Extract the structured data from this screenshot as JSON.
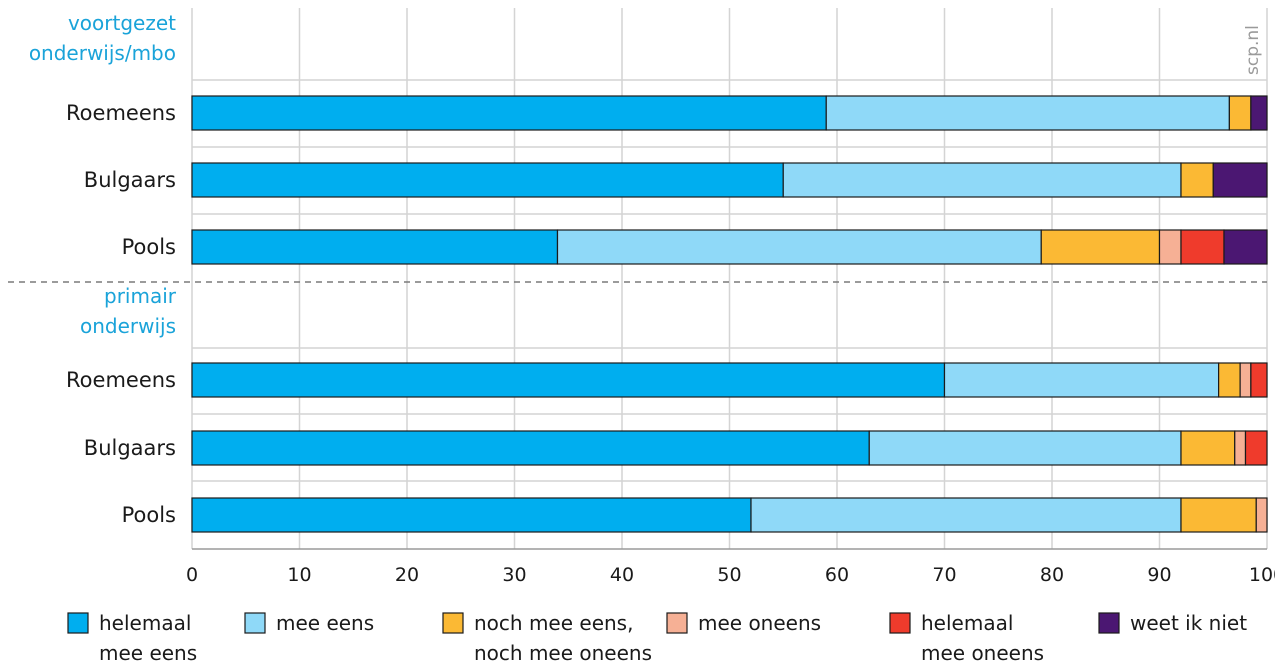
{
  "watermark": "scp.nl",
  "chart_data": {
    "type": "bar",
    "orientation": "horizontal",
    "stacked": true,
    "xlim": [
      0,
      100
    ],
    "xticks": [
      0,
      10,
      20,
      30,
      40,
      50,
      60,
      70,
      80,
      90,
      100
    ],
    "grid": true,
    "legend_position": "bottom",
    "groups": [
      {
        "label": "voortgezet\nonderwijs/mbo",
        "rows": [
          {
            "label": "Roemeens",
            "values": [
              59,
              37.5,
              2,
              0,
              0,
              1.5
            ]
          },
          {
            "label": "Bulgaars",
            "values": [
              55,
              37,
              3,
              0,
              0,
              5
            ]
          },
          {
            "label": "Pools",
            "values": [
              34,
              45,
              11,
              2,
              4,
              4
            ]
          }
        ]
      },
      {
        "label": "primair\nonderwijs",
        "rows": [
          {
            "label": "Roemeens",
            "values": [
              70,
              25.5,
              2,
              1,
              1.5,
              0
            ]
          },
          {
            "label": "Bulgaars",
            "values": [
              63,
              29,
              5,
              1,
              2,
              0
            ]
          },
          {
            "label": "Pools",
            "values": [
              52,
              40,
              7,
              1,
              0,
              0
            ]
          }
        ]
      }
    ],
    "series": [
      {
        "name": "helemaal\nmee eens",
        "color": "#00aeef"
      },
      {
        "name": "mee eens",
        "color": "#8fd9f8"
      },
      {
        "name": "noch mee eens,\nnoch mee oneens",
        "color": "#fbb934"
      },
      {
        "name": "mee oneens",
        "color": "#f6b095"
      },
      {
        "name": "helemaal\nmee oneens",
        "color": "#ef3b2c"
      },
      {
        "name": "weet ik niet",
        "color": "#4b1772"
      }
    ]
  }
}
